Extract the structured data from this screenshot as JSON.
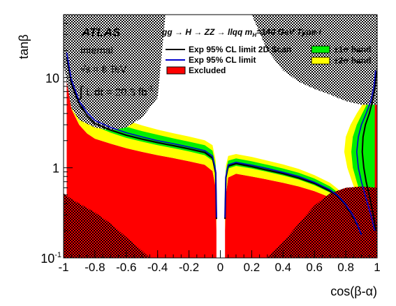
{
  "chart_data": {
    "type": "area",
    "xlabel": "cos(β-α)",
    "ylabel": "tanβ",
    "xlim": [
      -1,
      1
    ],
    "ylim": [
      0.1,
      50
    ],
    "yscale": "log",
    "x_ticks": [
      -1,
      -0.8,
      -0.6,
      -0.4,
      -0.2,
      0,
      0.2,
      0.4,
      0.6,
      0.8,
      1
    ],
    "x_tick_labels": [
      "-1",
      "-0.8",
      "-0.6",
      "-0.4",
      "-0.2",
      "0",
      "0.2",
      "0.4",
      "0.6",
      "0.8",
      "1"
    ],
    "y_major_ticks": [
      0.1,
      1,
      10
    ],
    "y_tick_labels": [
      {
        "value": 10,
        "base": "10",
        "exp": ""
      },
      {
        "value": 1,
        "base": "1",
        "exp": ""
      },
      {
        "value": 0.1,
        "base": "10",
        "exp": "-1"
      }
    ],
    "atlas_label": "ATLAS",
    "atlas_sublabel": "Internal",
    "energy": "√s = 8 TeV",
    "luminosity_parts": {
      "integral": "∫",
      "body": " L dt = 20.3 fb",
      "exp": "-1"
    },
    "process_label": "gg → H → ZZ → llqq m",
    "process_sub": "H",
    "process_tail": "=140 GeV Type-I",
    "legend": {
      "placement": "top",
      "entries": [
        {
          "label": "Exp 95% CL limit 2D Scan",
          "style": "line",
          "color": "#000000"
        },
        {
          "label": "±1σ band",
          "style": "fill",
          "color": "#00ee00"
        },
        {
          "label": "Exp 95% CL limit",
          "style": "line",
          "color": "#0000cc"
        },
        {
          "label": "±2σ band",
          "style": "fill",
          "color": "#ffff00"
        },
        {
          "label": "Excluded",
          "style": "fill",
          "color": "#ff0000"
        }
      ]
    },
    "regions": {
      "left": {
        "x": [
          -0.98,
          -0.95,
          -0.9,
          -0.85,
          -0.8,
          -0.7,
          -0.6,
          -0.5,
          -0.4,
          -0.3,
          -0.2,
          -0.1,
          -0.05,
          -0.03,
          -0.025
        ],
        "excluded_up": [
          9.5,
          4.5,
          3.0,
          2.4,
          2.1,
          1.85,
          1.65,
          1.5,
          1.38,
          1.28,
          1.18,
          1.08,
          0.92,
          0.6,
          0.2
        ],
        "minus2": [
          12,
          6,
          3.8,
          2.9,
          2.5,
          2.15,
          1.9,
          1.72,
          1.58,
          1.46,
          1.35,
          1.23,
          1.05,
          0.7,
          0.22
        ],
        "minus1": [
          15,
          7.5,
          4.6,
          3.5,
          2.9,
          2.45,
          2.15,
          1.95,
          1.78,
          1.65,
          1.52,
          1.38,
          1.2,
          0.8,
          0.25
        ],
        "expected": [
          19,
          9.5,
          5.5,
          4.1,
          3.35,
          2.8,
          2.45,
          2.2,
          2.0,
          1.85,
          1.7,
          1.55,
          1.35,
          0.92,
          0.28
        ],
        "plus1": [
          24,
          12,
          6.8,
          5.0,
          4.0,
          3.3,
          2.85,
          2.55,
          2.32,
          2.12,
          1.95,
          1.78,
          1.55,
          1.05,
          0.32
        ],
        "plus2": [
          30,
          15,
          8.5,
          6.0,
          4.8,
          3.9,
          3.35,
          2.95,
          2.65,
          2.42,
          2.22,
          2.02,
          1.78,
          1.2,
          0.36
        ],
        "scan": [
          17,
          8.5,
          5.1,
          3.8,
          3.1,
          2.62,
          2.3,
          2.08,
          1.9,
          1.76,
          1.62,
          1.48,
          1.28,
          0.88,
          0.27
        ]
      },
      "right": {
        "x": [
          0.03,
          0.035,
          0.05,
          0.1,
          0.2,
          0.3,
          0.4,
          0.5,
          0.6,
          0.7,
          0.75,
          0.8,
          0.85,
          0.88,
          0.9
        ],
        "excluded_up": [
          0.2,
          0.5,
          0.78,
          0.86,
          0.8,
          0.74,
          0.68,
          0.62,
          0.55,
          0.47,
          0.41,
          0.34,
          0.25,
          0.19,
          0.15
        ],
        "minus2": [
          0.22,
          0.6,
          0.88,
          0.96,
          0.9,
          0.83,
          0.76,
          0.69,
          0.6,
          0.5,
          0.43,
          0.35,
          0.26,
          0.2,
          0.16
        ],
        "minus1": [
          0.25,
          0.7,
          0.98,
          1.05,
          0.98,
          0.9,
          0.82,
          0.74,
          0.64,
          0.53,
          0.46,
          0.37,
          0.27,
          0.21,
          0.17
        ],
        "expected": [
          0.28,
          0.8,
          1.08,
          1.15,
          1.07,
          0.98,
          0.89,
          0.8,
          0.69,
          0.57,
          0.49,
          0.39,
          0.29,
          0.22,
          0.18
        ],
        "plus1": [
          0.32,
          0.92,
          1.2,
          1.27,
          1.18,
          1.08,
          0.98,
          0.88,
          0.76,
          0.62,
          0.53,
          0.42,
          0.31,
          0.24,
          0.19
        ],
        "plus2": [
          0.36,
          1.05,
          1.35,
          1.42,
          1.32,
          1.2,
          1.09,
          0.97,
          0.83,
          0.68,
          0.58,
          0.46,
          0.34,
          0.26,
          0.2
        ],
        "scan": [
          0.27,
          0.78,
          1.04,
          1.11,
          1.03,
          0.94,
          0.86,
          0.77,
          0.67,
          0.55,
          0.48,
          0.38,
          0.28,
          0.22,
          0.18
        ]
      },
      "edge": {
        "y": [
          0.2,
          0.3,
          0.45,
          0.7,
          1.0,
          1.5,
          2.2,
          3.0,
          4.0,
          5.5,
          8,
          12
        ],
        "expected_x": [
          0.985,
          0.96,
          0.93,
          0.9,
          0.88,
          0.87,
          0.88,
          0.9,
          0.93,
          0.96,
          0.98,
          0.99
        ],
        "inner1_x": [
          0.992,
          0.975,
          0.955,
          0.93,
          0.915,
          0.905,
          0.91,
          0.925,
          0.95,
          0.97,
          0.988,
          0.995
        ],
        "outer1_x": [
          0.978,
          0.945,
          0.905,
          0.87,
          0.845,
          0.835,
          0.845,
          0.87,
          0.905,
          0.945,
          0.972,
          0.985
        ],
        "outer2_x": [
          0.97,
          0.93,
          0.88,
          0.84,
          0.81,
          0.79,
          0.8,
          0.83,
          0.87,
          0.92,
          0.96,
          0.98
        ],
        "excluded_x_min": 0.985
      },
      "hatched_top_left": {
        "x": [
          -1,
          -0.95,
          -0.9,
          -0.8,
          -0.7,
          -0.6,
          -0.5,
          -0.4,
          -0.35
        ],
        "y_low": [
          14,
          4.6,
          3.4,
          2.8,
          2.6,
          2.8,
          3.6,
          6,
          50
        ]
      },
      "hatched_top_right": {
        "x": [
          0.2,
          0.3,
          0.4,
          0.5,
          0.6,
          0.7,
          0.8,
          0.9,
          0.95,
          1
        ],
        "y_low": [
          50,
          20,
          12,
          9,
          7.5,
          6.5,
          5.5,
          5,
          5,
          5
        ]
      },
      "hatched_bottom_left": {
        "x": [
          -1,
          -0.95,
          -0.9,
          -0.8,
          -0.7,
          -0.6,
          -0.5,
          -0.45
        ],
        "y_high": [
          0.52,
          0.45,
          0.4,
          0.32,
          0.24,
          0.17,
          0.12,
          0.1
        ]
      },
      "hatched_bottom_right": {
        "x": [
          0.3,
          0.4,
          0.5,
          0.6,
          0.7,
          0.8,
          0.9,
          1
        ],
        "y_high": [
          0.1,
          0.15,
          0.24,
          0.38,
          0.52,
          0.6,
          0.62,
          0.6
        ]
      }
    }
  }
}
